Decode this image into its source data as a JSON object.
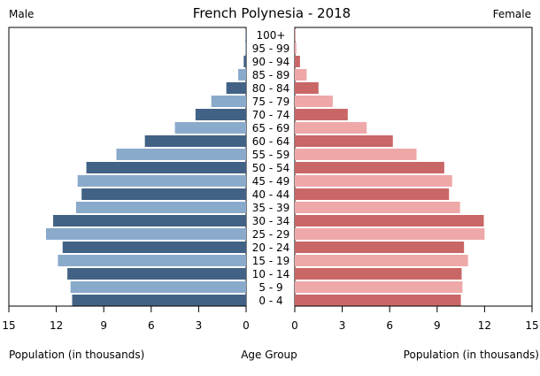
{
  "chart_data": {
    "type": "bar",
    "title": "French Polynesia - 2018",
    "left_label": "Male",
    "right_label": "Female",
    "left_xlabel": "Population (in thousands)",
    "center_xlabel": "Age Group",
    "right_xlabel": "Population (in thousands)",
    "xlim": [
      0,
      15
    ],
    "ticks": [
      0,
      3,
      6,
      9,
      12,
      15
    ],
    "categories": [
      "100+",
      "95 - 99",
      "90 - 94",
      "85 - 89",
      "80 - 84",
      "75 - 79",
      "70 - 74",
      "65 - 69",
      "60 - 64",
      "55 - 59",
      "50 - 54",
      "45 - 49",
      "40 - 44",
      "35 - 39",
      "30 - 34",
      "25 - 29",
      "20 - 24",
      "15 - 19",
      "10 - 14",
      "5 - 9",
      "0 - 4"
    ],
    "series": [
      {
        "name": "Male",
        "values": [
          0.02,
          0.05,
          0.15,
          0.5,
          1.25,
          2.2,
          3.2,
          4.5,
          6.4,
          8.2,
          10.1,
          10.65,
          10.4,
          10.75,
          12.2,
          12.65,
          11.6,
          11.9,
          11.3,
          11.1,
          11.0
        ],
        "color_dark": "#426285",
        "color_light": "#8aaacb"
      },
      {
        "name": "Female",
        "values": [
          0.02,
          0.1,
          0.33,
          0.75,
          1.5,
          2.4,
          3.35,
          4.55,
          6.2,
          7.7,
          9.45,
          9.95,
          9.75,
          10.45,
          11.95,
          12.0,
          10.7,
          10.95,
          10.55,
          10.6,
          10.5
        ],
        "color_dark": "#c96666",
        "color_light": "#efa8a8"
      }
    ]
  }
}
